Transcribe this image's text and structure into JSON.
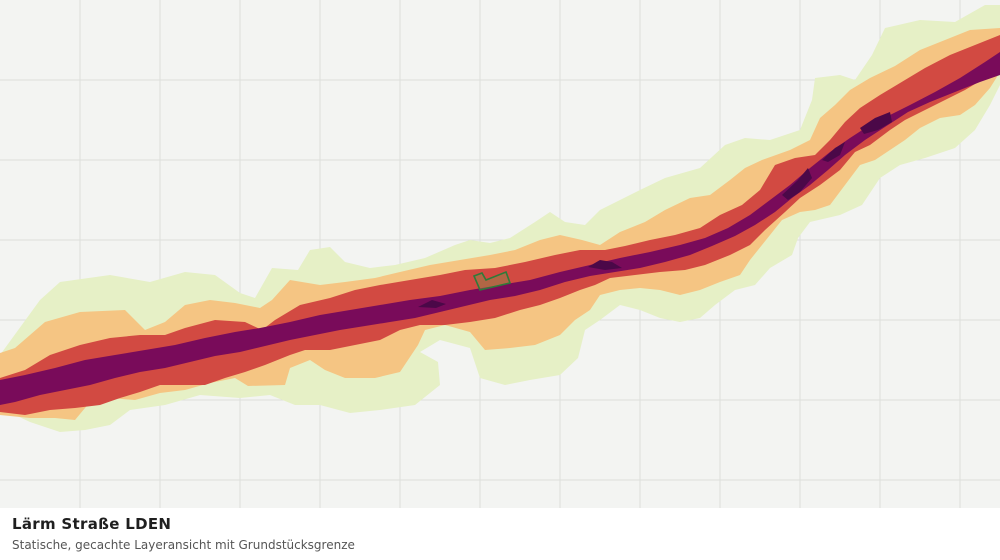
{
  "map": {
    "title": "Lärm Straße LDEN",
    "subtitle": "Statische, gecachte Layeransicht mit Grundstücksgrenze",
    "background_color": "#f3f4f2",
    "grid_color": "#dcdedb",
    "noise_band_colors": {
      "outer": "#e6f0c6",
      "mid": "#f5c583",
      "inner": "#d24a42",
      "core": "#790b5a",
      "peak": "#4b0848"
    },
    "parcel_outline_color": "#2f7a39",
    "parcel_fill_color": "#8a8a4a"
  }
}
